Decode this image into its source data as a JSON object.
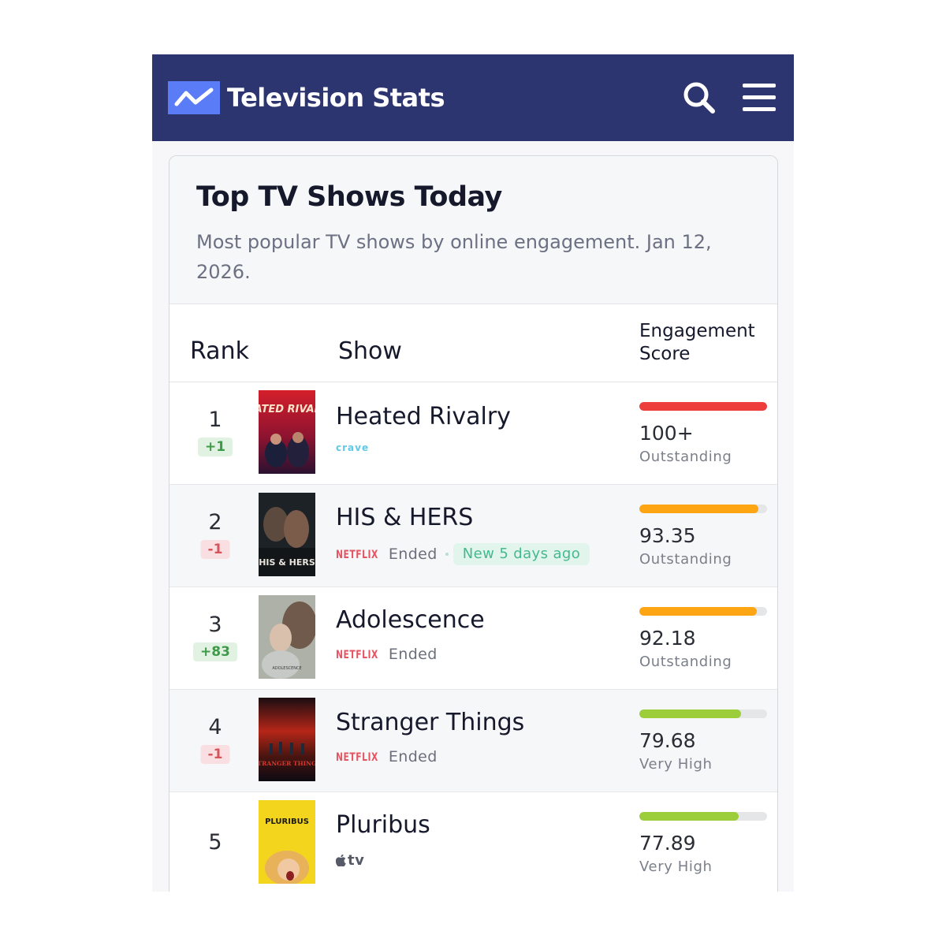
{
  "header": {
    "brand": "Television Stats",
    "logo_icon": "trend-line-icon",
    "search_icon": "search-icon",
    "menu_icon": "hamburger-menu-icon",
    "background": "#2d3570",
    "logo_color": "#5b7cf7"
  },
  "card": {
    "title": "Top TV Shows Today",
    "subtitle": "Most popular TV shows by online engagement. Jan 12, 2026."
  },
  "table": {
    "columns": {
      "rank": "Rank",
      "show": "Show",
      "score": "Engagement Score"
    },
    "rows": [
      {
        "rank": "1",
        "change": "+1",
        "change_dir": "up",
        "title": "Heated Rivalry",
        "network": "crave",
        "status": "",
        "new_badge": "",
        "score": "100+",
        "tier": "Outstanding",
        "bar_fraction": 1.0,
        "bar_color": "#ee3e3c",
        "poster_icon": "heated-rivalry-poster"
      },
      {
        "rank": "2",
        "change": "-1",
        "change_dir": "down",
        "title": "HIS & HERS",
        "network": "NETFLIX",
        "status": "Ended",
        "new_badge": "New 5 days ago",
        "score": "93.35",
        "tier": "Outstanding",
        "bar_fraction": 0.9335,
        "bar_color": "#fda512",
        "poster_icon": "his-and-hers-poster"
      },
      {
        "rank": "3",
        "change": "+83",
        "change_dir": "up",
        "title": "Adolescence",
        "network": "NETFLIX",
        "status": "Ended",
        "new_badge": "",
        "score": "92.18",
        "tier": "Outstanding",
        "bar_fraction": 0.9218,
        "bar_color": "#fda512",
        "poster_icon": "adolescence-poster"
      },
      {
        "rank": "4",
        "change": "-1",
        "change_dir": "down",
        "title": "Stranger Things",
        "network": "NETFLIX",
        "status": "Ended",
        "new_badge": "",
        "score": "79.68",
        "tier": "Very High",
        "bar_fraction": 0.7968,
        "bar_color": "#9ccd3a",
        "poster_icon": "stranger-things-poster"
      },
      {
        "rank": "5",
        "change": "",
        "change_dir": "",
        "title": "Pluribus",
        "network": "tv",
        "status": "",
        "new_badge": "",
        "score": "77.89",
        "tier": "Very High",
        "bar_fraction": 0.7789,
        "bar_color": "#9ccd3a",
        "poster_icon": "pluribus-poster"
      }
    ]
  },
  "posters": {
    "heated_rivalry": "HEATED RIVALRY",
    "his_and_hers": "HIS & HERS",
    "adolescence": "ADOLESCENCE",
    "stranger_things": "STRANGER THINGS",
    "pluribus": "PLURIBUS"
  }
}
